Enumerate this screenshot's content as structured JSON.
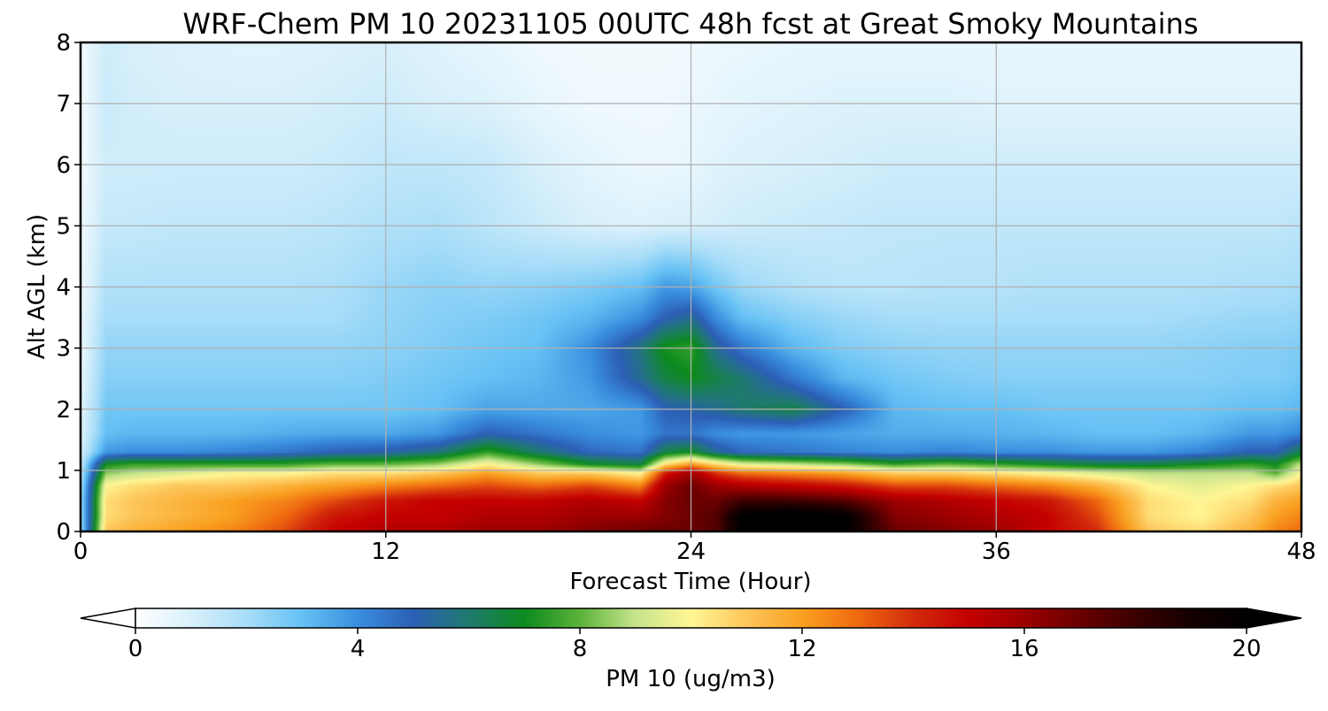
{
  "chart_data": {
    "type": "heatmap",
    "title": "WRF-Chem PM 10  20231105 00UTC 48h fcst at Great Smoky Mountains",
    "xlabel": "Forecast Time (Hour)",
    "ylabel": "Alt AGL (km)",
    "xlim": [
      0,
      48
    ],
    "ylim": [
      0,
      8
    ],
    "x_ticks": [
      "0",
      "12",
      "24",
      "36",
      "48"
    ],
    "x_tick_values": [
      0,
      12,
      24,
      36,
      48
    ],
    "y_ticks": [
      "0",
      "1",
      "2",
      "3",
      "4",
      "5",
      "6",
      "7",
      "8"
    ],
    "y_tick_values": [
      0,
      1,
      2,
      3,
      4,
      5,
      6,
      7,
      8
    ],
    "grid": true,
    "colorbar": {
      "label": "PM 10  (ug/m3)",
      "range": [
        0,
        20
      ],
      "extend": "both",
      "ticks": [
        "0",
        "4",
        "8",
        "12",
        "16",
        "20"
      ],
      "tick_values": [
        0,
        4,
        8,
        12,
        16,
        20
      ],
      "color_stops": [
        [
          0,
          "#ffffff"
        ],
        [
          1,
          "#d8f0fb"
        ],
        [
          2,
          "#a8ddf8"
        ],
        [
          3,
          "#65c1f4"
        ],
        [
          4,
          "#3a8fde"
        ],
        [
          5,
          "#2c5fb6"
        ],
        [
          6,
          "#1f7a6e"
        ],
        [
          7,
          "#0c8a1e"
        ],
        [
          8,
          "#5cb33a"
        ],
        [
          9,
          "#c6e48c"
        ],
        [
          10,
          "#fff694"
        ],
        [
          11,
          "#fdc65a"
        ],
        [
          12,
          "#f9a020"
        ],
        [
          13,
          "#ef6a10"
        ],
        [
          14,
          "#d22b0c"
        ],
        [
          15,
          "#c40000"
        ],
        [
          16,
          "#9c0000"
        ],
        [
          17,
          "#6a0000"
        ],
        [
          18,
          "#3b0000"
        ],
        [
          19,
          "#150000"
        ],
        [
          20,
          "#000000"
        ]
      ]
    },
    "field": {
      "note": "PM10 concentration (ug/m3) sampled on forecast hour x altitude grid",
      "x": [
        0,
        1,
        2,
        4,
        6,
        8,
        10,
        12,
        14,
        16,
        18,
        20,
        22,
        23,
        24,
        25,
        26,
        28,
        30,
        32,
        34,
        36,
        38,
        40,
        42,
        44,
        46,
        47,
        48
      ],
      "y": [
        0,
        0.25,
        0.5,
        0.75,
        0.95,
        1.1,
        1.3,
        1.6,
        2.0,
        2.5,
        3.0,
        3.5,
        4.0,
        5.0,
        6.0,
        7.0,
        8.0
      ],
      "z": [
        [
          2.0,
          11.0,
          11.5,
          12.0,
          12.5,
          13.5,
          15.0,
          15.5,
          15.5,
          16.0,
          16.0,
          16.5,
          17.0,
          17.0,
          17.0,
          17.5,
          20.0,
          20.5,
          20.0,
          17.0,
          16.5,
          16.0,
          15.0,
          14.0,
          11.0,
          10.5,
          11.5,
          12.5,
          13.0
        ],
        [
          2.0,
          10.5,
          11.0,
          11.5,
          12.0,
          13.0,
          14.5,
          15.0,
          15.0,
          15.5,
          15.5,
          16.0,
          16.0,
          16.5,
          17.0,
          17.5,
          20.0,
          20.5,
          20.0,
          16.5,
          16.0,
          15.5,
          15.0,
          13.5,
          10.5,
          10.0,
          11.0,
          12.0,
          12.5
        ],
        [
          2.0,
          10.5,
          11.0,
          11.5,
          12.0,
          12.5,
          13.5,
          14.5,
          15.0,
          15.0,
          15.0,
          15.5,
          15.0,
          16.5,
          17.0,
          17.0,
          18.0,
          18.0,
          17.5,
          16.0,
          15.5,
          15.0,
          14.5,
          13.0,
          10.5,
          10.0,
          10.5,
          11.5,
          12.0
        ],
        [
          1.8,
          10.0,
          10.5,
          11.0,
          11.0,
          11.5,
          12.0,
          12.5,
          13.0,
          13.5,
          13.0,
          13.5,
          12.5,
          16.0,
          17.0,
          16.0,
          15.5,
          15.0,
          14.5,
          13.5,
          13.5,
          13.0,
          12.5,
          11.5,
          10.0,
          9.5,
          10.0,
          10.5,
          11.0
        ],
        [
          1.5,
          8.5,
          9.0,
          9.5,
          10.0,
          10.0,
          10.5,
          10.5,
          11.0,
          12.0,
          11.0,
          11.0,
          10.0,
          14.5,
          16.0,
          14.0,
          13.0,
          12.5,
          12.0,
          11.0,
          11.0,
          10.5,
          10.0,
          9.5,
          9.0,
          9.0,
          9.0,
          8.0,
          10.0
        ],
        [
          1.3,
          7.0,
          7.5,
          7.5,
          7.5,
          7.5,
          8.0,
          8.0,
          8.5,
          10.0,
          8.5,
          7.0,
          6.5,
          10.5,
          12.0,
          10.5,
          9.5,
          9.0,
          8.5,
          7.5,
          8.0,
          7.5,
          7.0,
          6.5,
          6.5,
          7.0,
          7.5,
          7.0,
          9.0
        ],
        [
          1.0,
          3.8,
          4.0,
          4.0,
          4.2,
          4.5,
          5.0,
          5.2,
          5.8,
          7.5,
          6.0,
          4.8,
          4.5,
          6.5,
          7.0,
          5.5,
          4.8,
          4.5,
          4.2,
          4.0,
          4.2,
          4.0,
          4.0,
          3.8,
          3.8,
          4.2,
          5.0,
          5.0,
          6.5
        ],
        [
          0.8,
          3.0,
          3.2,
          3.2,
          3.2,
          3.4,
          3.5,
          3.5,
          3.8,
          5.0,
          4.5,
          4.0,
          3.8,
          4.5,
          4.5,
          4.0,
          3.8,
          3.8,
          3.6,
          3.4,
          3.4,
          3.3,
          3.2,
          3.0,
          3.0,
          3.2,
          3.8,
          3.8,
          4.2
        ],
        [
          0.7,
          2.8,
          2.8,
          2.8,
          2.8,
          2.8,
          2.8,
          2.8,
          3.0,
          3.6,
          3.5,
          3.5,
          3.8,
          5.0,
          5.2,
          5.5,
          6.0,
          6.5,
          5.0,
          3.2,
          3.0,
          3.0,
          2.8,
          2.8,
          2.8,
          2.8,
          3.0,
          3.0,
          3.2
        ],
        [
          0.6,
          2.5,
          2.5,
          2.5,
          2.5,
          2.5,
          2.5,
          2.6,
          2.8,
          3.0,
          3.2,
          3.8,
          5.5,
          6.5,
          7.0,
          6.5,
          6.0,
          4.5,
          3.2,
          2.8,
          2.6,
          2.5,
          2.5,
          2.5,
          2.5,
          2.5,
          2.6,
          2.6,
          2.8
        ],
        [
          0.5,
          2.3,
          2.3,
          2.3,
          2.3,
          2.3,
          2.3,
          2.4,
          2.6,
          2.8,
          3.0,
          4.0,
          5.8,
          7.2,
          7.5,
          5.5,
          4.5,
          3.2,
          2.6,
          2.4,
          2.3,
          2.3,
          2.3,
          2.3,
          2.3,
          2.4,
          2.5,
          2.5,
          2.6
        ],
        [
          0.5,
          2.0,
          2.0,
          2.0,
          2.0,
          2.0,
          2.0,
          2.3,
          2.5,
          2.6,
          2.8,
          3.2,
          4.0,
          5.0,
          5.5,
          4.0,
          3.0,
          2.5,
          2.2,
          2.0,
          2.0,
          2.0,
          2.0,
          2.0,
          2.0,
          2.1,
          2.2,
          2.2,
          2.3
        ],
        [
          0.4,
          1.8,
          1.8,
          1.8,
          1.8,
          1.8,
          1.9,
          2.2,
          2.4,
          2.3,
          2.4,
          2.6,
          3.0,
          3.8,
          3.6,
          2.8,
          2.2,
          1.8,
          1.6,
          1.6,
          1.7,
          1.7,
          1.8,
          1.8,
          1.8,
          1.8,
          1.9,
          1.9,
          2.0
        ],
        [
          0.4,
          1.4,
          1.4,
          1.5,
          1.5,
          1.5,
          1.6,
          1.8,
          1.9,
          1.6,
          1.3,
          1.0,
          0.9,
          1.0,
          1.0,
          1.1,
          1.2,
          1.3,
          1.4,
          1.5,
          1.5,
          1.5,
          1.5,
          1.5,
          1.5,
          1.5,
          1.5,
          1.5,
          1.6
        ],
        [
          0.3,
          1.2,
          1.2,
          1.2,
          1.2,
          1.2,
          1.3,
          1.5,
          1.5,
          1.4,
          1.0,
          0.7,
          0.5,
          0.5,
          0.6,
          0.8,
          0.9,
          1.0,
          1.1,
          1.2,
          1.2,
          1.2,
          1.2,
          1.2,
          1.2,
          1.2,
          1.2,
          1.2,
          1.2
        ],
        [
          0.3,
          1.3,
          1.1,
          1.0,
          1.0,
          1.0,
          1.1,
          1.2,
          1.0,
          0.9,
          0.6,
          0.4,
          0.4,
          0.4,
          0.5,
          0.6,
          0.7,
          0.8,
          0.9,
          0.9,
          0.9,
          0.8,
          0.8,
          0.8,
          0.8,
          0.8,
          0.8,
          0.8,
          0.8
        ],
        [
          0.3,
          1.2,
          1.0,
          0.9,
          0.8,
          0.8,
          0.9,
          1.0,
          0.8,
          0.6,
          0.4,
          0.3,
          0.3,
          0.3,
          0.4,
          0.5,
          0.5,
          0.6,
          0.6,
          0.6,
          0.6,
          0.6,
          0.6,
          0.6,
          0.6,
          0.6,
          0.6,
          0.6,
          0.6
        ]
      ]
    }
  }
}
